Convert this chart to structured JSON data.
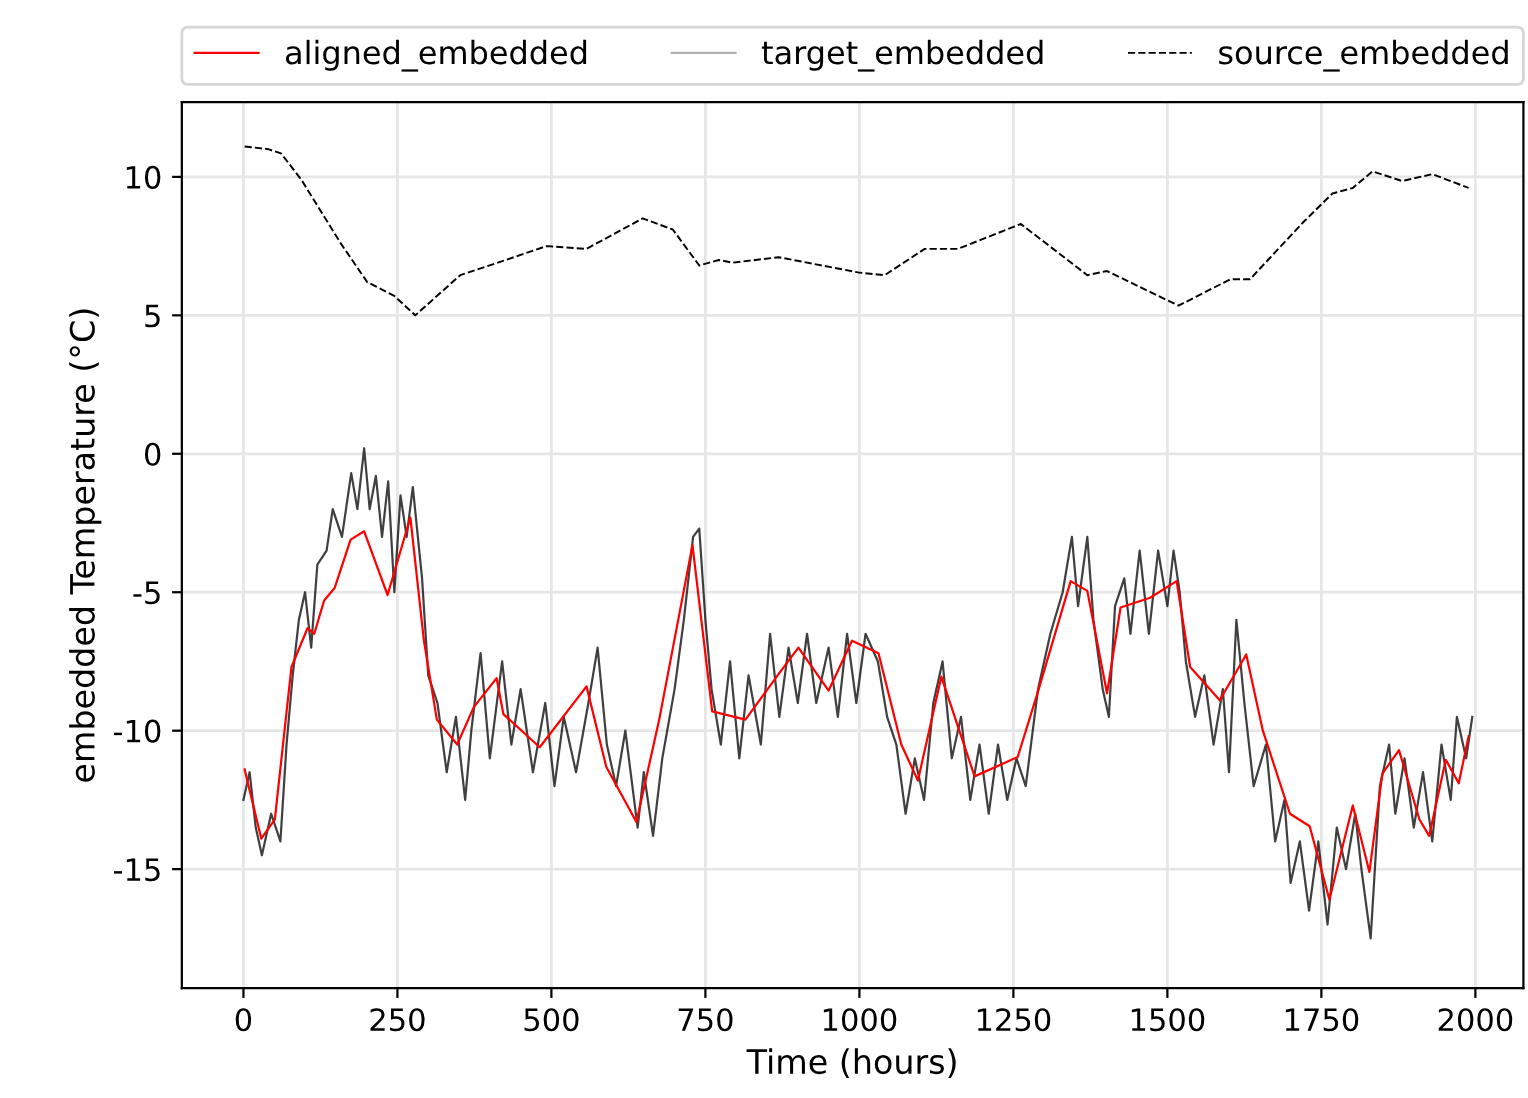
{
  "chart_data": {
    "type": "line",
    "xlabel": "Time (hours)",
    "ylabel": "embedded Temperature (°C)",
    "xlim": [
      -100,
      2078
    ],
    "ylim": [
      -19.3,
      12.7
    ],
    "xticks": [
      0,
      250,
      500,
      750,
      1000,
      1250,
      1500,
      1750,
      2000
    ],
    "yticks": [
      -15,
      -10,
      -5,
      0,
      5,
      10
    ],
    "grid": true,
    "legend": "top",
    "series": [
      {
        "name": "aligned_embedded",
        "color": "#ff0000",
        "line_style": "solid",
        "x": [
          2,
          29,
          51,
          78,
          104,
          115,
          131,
          148,
          174,
          196,
          234,
          271,
          293,
          314,
          347,
          374,
          411,
          422,
          481,
          557,
          589,
          638,
          675,
          729,
          761,
          815,
          869,
          901,
          950,
          988,
          1031,
          1068,
          1095,
          1133,
          1187,
          1257,
          1289,
          1343,
          1370,
          1402,
          1424,
          1472,
          1515,
          1537,
          1585,
          1628,
          1655,
          1699,
          1731,
          1763,
          1801,
          1828,
          1849,
          1876,
          1909,
          1925,
          1952,
          1973,
          1989
        ],
        "values": [
          -11.4,
          -13.9,
          -13.2,
          -7.7,
          -6.3,
          -6.5,
          -5.3,
          -4.85,
          -3.1,
          -2.8,
          -5.1,
          -2.3,
          -6.75,
          -9.6,
          -10.5,
          -9.15,
          -8.1,
          -9.4,
          -10.6,
          -8.4,
          -11.3,
          -13.3,
          -9.6,
          -3.3,
          -9.3,
          -9.6,
          -7.95,
          -7.0,
          -8.55,
          -6.75,
          -7.2,
          -10.5,
          -11.8,
          -8.05,
          -11.65,
          -10.95,
          -8.65,
          -4.6,
          -4.95,
          -8.65,
          -5.55,
          -5.2,
          -4.6,
          -7.7,
          -8.9,
          -7.25,
          -10.0,
          -13.0,
          -13.45,
          -16.1,
          -12.7,
          -15.1,
          -11.55,
          -10.7,
          -13.2,
          -13.8,
          -11.05,
          -11.9,
          -10.2
        ]
      },
      {
        "name": "target_embedded",
        "color": "#000000",
        "line_style": "solid",
        "x": [
          0,
          10,
          20,
          30,
          45,
          60,
          70,
          80,
          90,
          100,
          110,
          120,
          135,
          145,
          160,
          175,
          185,
          196,
          205,
          215,
          225,
          235,
          245,
          255,
          265,
          275,
          290,
          300,
          315,
          330,
          345,
          360,
          370,
          385,
          400,
          420,
          435,
          450,
          470,
          490,
          505,
          520,
          540,
          560,
          575,
          590,
          605,
          620,
          640,
          650,
          665,
          680,
          700,
          715,
          730,
          740,
          750,
          760,
          775,
          790,
          805,
          820,
          840,
          855,
          870,
          885,
          900,
          915,
          930,
          950,
          965,
          980,
          995,
          1010,
          1030,
          1045,
          1060,
          1075,
          1090,
          1105,
          1120,
          1135,
          1150,
          1165,
          1180,
          1195,
          1210,
          1225,
          1240,
          1255,
          1270,
          1290,
          1310,
          1330,
          1345,
          1355,
          1370,
          1380,
          1395,
          1405,
          1415,
          1430,
          1440,
          1455,
          1470,
          1485,
          1500,
          1510,
          1520,
          1530,
          1545,
          1560,
          1575,
          1590,
          1600,
          1612,
          1625,
          1640,
          1660,
          1675,
          1690,
          1700,
          1715,
          1730,
          1745,
          1760,
          1775,
          1790,
          1805,
          1815,
          1830,
          1845,
          1860,
          1870,
          1885,
          1900,
          1915,
          1930,
          1945,
          1960,
          1970,
          1985,
          1995
        ],
        "values": [
          -12.5,
          -11.5,
          -13.5,
          -14.5,
          -13.0,
          -14.0,
          -10.5,
          -8.0,
          -6.0,
          -5.0,
          -7.0,
          -4.0,
          -3.5,
          -2.0,
          -3.0,
          -0.7,
          -2.0,
          0.2,
          -2.0,
          -0.8,
          -3.0,
          -1.0,
          -5.0,
          -1.5,
          -3.0,
          -1.2,
          -4.5,
          -8.0,
          -9.0,
          -11.5,
          -9.5,
          -12.5,
          -10.0,
          -7.2,
          -11.0,
          -7.5,
          -10.5,
          -8.5,
          -11.5,
          -9.0,
          -12.0,
          -9.5,
          -11.5,
          -9.0,
          -7.0,
          -10.5,
          -12.0,
          -10.0,
          -13.5,
          -11.5,
          -13.8,
          -11.0,
          -8.5,
          -6.0,
          -3.0,
          -2.7,
          -6.0,
          -8.5,
          -10.5,
          -7.5,
          -11.0,
          -8.0,
          -10.5,
          -6.5,
          -9.5,
          -7.0,
          -9.0,
          -6.5,
          -9.0,
          -7.0,
          -9.5,
          -6.5,
          -9.0,
          -6.5,
          -7.5,
          -9.5,
          -10.5,
          -13.0,
          -11.0,
          -12.5,
          -9.0,
          -7.5,
          -11.0,
          -9.5,
          -12.5,
          -10.5,
          -13.0,
          -10.5,
          -12.5,
          -11.0,
          -12.0,
          -8.5,
          -6.5,
          -5.0,
          -3.0,
          -5.5,
          -3.0,
          -6.0,
          -8.5,
          -9.5,
          -5.5,
          -4.5,
          -6.5,
          -3.5,
          -6.5,
          -3.5,
          -5.5,
          -3.5,
          -5.0,
          -7.5,
          -9.5,
          -8.0,
          -10.5,
          -8.5,
          -11.5,
          -6.0,
          -9.0,
          -12.0,
          -10.5,
          -14.0,
          -12.5,
          -15.5,
          -14.0,
          -16.5,
          -14.0,
          -17.0,
          -13.5,
          -15.0,
          -13.0,
          -15.0,
          -17.5,
          -12.0,
          -10.5,
          -13.0,
          -11.0,
          -13.5,
          -11.5,
          -14.0,
          -10.5,
          -12.5,
          -9.5,
          -11.0,
          -9.5
        ]
      },
      {
        "name": "source_embedded",
        "color": "#000000",
        "line_style": "dashed",
        "x": [
          2,
          40,
          61,
          94,
          158,
          201,
          245,
          279,
          352,
          406,
          492,
          557,
          648,
          697,
          740,
          772,
          794,
          869,
          998,
          1041,
          1106,
          1160,
          1262,
          1370,
          1402,
          1518,
          1602,
          1634,
          1720,
          1768,
          1801,
          1833,
          1881,
          1930,
          1989
        ],
        "values": [
          11.1,
          11.0,
          10.85,
          9.9,
          7.6,
          6.2,
          5.7,
          5.0,
          6.45,
          6.85,
          7.5,
          7.4,
          8.5,
          8.1,
          6.8,
          7.0,
          6.9,
          7.1,
          6.55,
          6.45,
          7.4,
          7.4,
          8.3,
          6.45,
          6.6,
          5.35,
          6.3,
          6.3,
          8.35,
          9.4,
          9.6,
          10.2,
          9.85,
          10.1,
          9.6
        ]
      }
    ]
  }
}
